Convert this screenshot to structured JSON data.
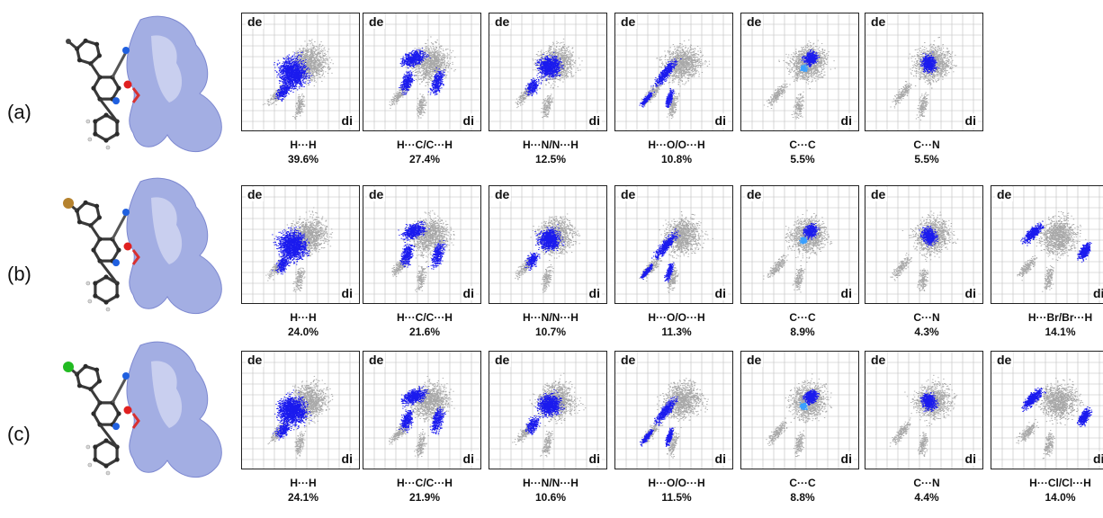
{
  "rows": [
    {
      "label": "(a)",
      "substituent": "methyl",
      "substituent_color": "#444444",
      "panels": [
        {
          "contact": "H···H",
          "percent": "39.6%",
          "de": "de",
          "di": "di",
          "shape": "hh",
          "truncated": false
        },
        {
          "contact": "H···C/C···H",
          "percent": "27.4%",
          "de": "de",
          "di": "di",
          "shape": "hc",
          "truncated": false
        },
        {
          "contact": "H···N/N···H",
          "percent": "12.5%",
          "de": "de",
          "di": "di",
          "shape": "hn",
          "truncated": false
        },
        {
          "contact": "H···O/O···H",
          "percent": "10.8%",
          "de": "de",
          "di": "di",
          "shape": "ho",
          "truncated": false
        },
        {
          "contact": "C···C",
          "percent": "5.5%",
          "de": "de",
          "di": "di",
          "shape": "cc",
          "truncated": false
        },
        {
          "contact": "C···N",
          "percent": "5.5%",
          "de": "de",
          "di": "di",
          "shape": "cn",
          "truncated": false
        }
      ]
    },
    {
      "label": "(b)",
      "substituent": "Br",
      "substituent_color": "#b5822e",
      "panels": [
        {
          "contact": "H···H",
          "percent": "24.0%",
          "de": "de",
          "di": "di",
          "shape": "hh",
          "truncated": false
        },
        {
          "contact": "H···C/C···H",
          "percent": "21.6%",
          "de": "de",
          "di": "di",
          "shape": "hc",
          "truncated": false
        },
        {
          "contact": "H···N/N···H",
          "percent": "10.7%",
          "de": "de",
          "di": "di",
          "shape": "hn",
          "truncated": false
        },
        {
          "contact": "H···O/O···H",
          "percent": "11.3%",
          "de": "de",
          "di": "di",
          "shape": "ho",
          "truncated": false
        },
        {
          "contact": "C···C",
          "percent": "8.9%",
          "de": "de",
          "di": "di",
          "shape": "cc",
          "truncated": false
        },
        {
          "contact": "C···N",
          "percent": "4.3%",
          "de": "de",
          "di": "di",
          "shape": "cn",
          "truncated": false
        },
        {
          "contact": "H···Br/Br···H",
          "percent": "14.1%",
          "de": "de",
          "di": "di",
          "shape": "hx",
          "truncated": true
        }
      ]
    },
    {
      "label": "(c)",
      "substituent": "Cl",
      "substituent_color": "#22bb22",
      "panels": [
        {
          "contact": "H···H",
          "percent": "24.1%",
          "de": "de",
          "di": "di",
          "shape": "hh",
          "truncated": false
        },
        {
          "contact": "H···C/C···H",
          "percent": "21.9%",
          "de": "de",
          "di": "di",
          "shape": "hc",
          "truncated": false
        },
        {
          "contact": "H···N/N···H",
          "percent": "10.6%",
          "de": "de",
          "di": "di",
          "shape": "hn",
          "truncated": false
        },
        {
          "contact": "H···O/O···H",
          "percent": "11.5%",
          "de": "de",
          "di": "di",
          "shape": "ho",
          "truncated": false
        },
        {
          "contact": "C···C",
          "percent": "8.8%",
          "de": "de",
          "di": "di",
          "shape": "cc",
          "truncated": false
        },
        {
          "contact": "C···N",
          "percent": "4.4%",
          "de": "de",
          "di": "di",
          "shape": "cn",
          "truncated": false
        },
        {
          "contact": "H···Cl/Cl···H",
          "percent": "14.0%",
          "de": "de",
          "di": "di",
          "shape": "hx",
          "truncated": true
        }
      ]
    }
  ],
  "colors": {
    "grid": "#bdbdbd",
    "gray_cloud": "#a8a8a8",
    "blue_dark": "#1a1aee",
    "blue_light": "#3aa0ff",
    "molecule_ring": "#3a3a3a",
    "oxygen": "#e02020",
    "nitrogen": "#2060e0",
    "surface": "#9aa6e0"
  }
}
